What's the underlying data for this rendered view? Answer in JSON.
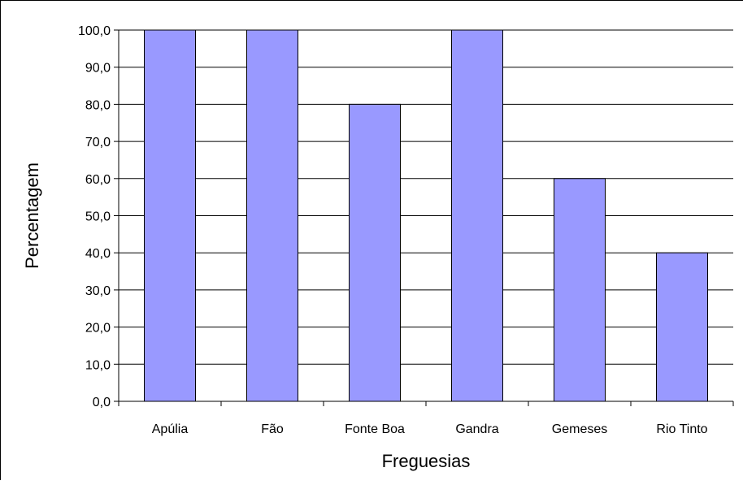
{
  "chart_data": {
    "type": "bar",
    "title": "",
    "xlabel": "Freguesias",
    "ylabel": "Percentagem",
    "categories": [
      "Apúlia",
      "Fão",
      "Fonte Boa",
      "Gandra",
      "Gemeses",
      "Rio Tinto"
    ],
    "values": [
      100.0,
      100.0,
      80.0,
      100.0,
      60.0,
      40.0
    ],
    "ylim": [
      0,
      100
    ],
    "yticks": [
      0,
      10,
      20,
      30,
      40,
      50,
      60,
      70,
      80,
      90,
      100
    ],
    "ytick_labels": [
      "0,0",
      "10,0",
      "20,0",
      "30,0",
      "40,0",
      "50,0",
      "60,0",
      "70,0",
      "80,0",
      "90,0",
      "100,0"
    ],
    "grid": "horizontal",
    "legend": "none",
    "colors": {
      "bar": "#9999ff",
      "bar_edge": "#000000",
      "grid": "#000000",
      "axis": "#000000"
    }
  }
}
